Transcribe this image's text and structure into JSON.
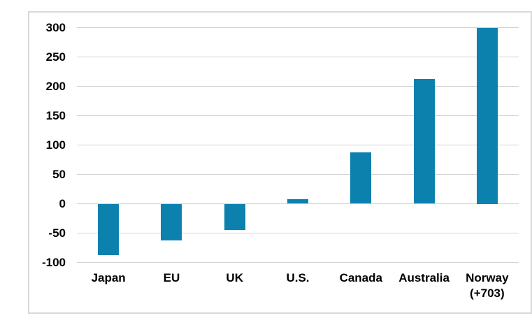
{
  "chart_data": {
    "type": "bar",
    "title": "",
    "xlabel": "",
    "ylabel": "",
    "categories": [
      "Japan",
      "EU",
      "UK",
      "U.S.",
      "Canada",
      "Australia",
      "Norway (+703)"
    ],
    "category_label_lines": [
      [
        "Japan"
      ],
      [
        "EU"
      ],
      [
        "UK"
      ],
      [
        "U.S."
      ],
      [
        "Canada"
      ],
      [
        "Australia"
      ],
      [
        "Norway",
        "(+703)"
      ]
    ],
    "values": [
      -87,
      -63,
      -45,
      8,
      88,
      213,
      300
    ],
    "ylim": [
      -100,
      300
    ],
    "ytick_step": 50,
    "ytick_labels": [
      "300",
      "250",
      "200",
      "150",
      "100",
      "50",
      "0",
      "-50",
      "-100"
    ],
    "legend": "none",
    "grid": "horizontal",
    "colors": {
      "bar": "#0c81ae",
      "gridline": "#d2d2d2",
      "frame_border": "#d9d9d9",
      "text": "#000000",
      "background": "#ffffff"
    }
  }
}
